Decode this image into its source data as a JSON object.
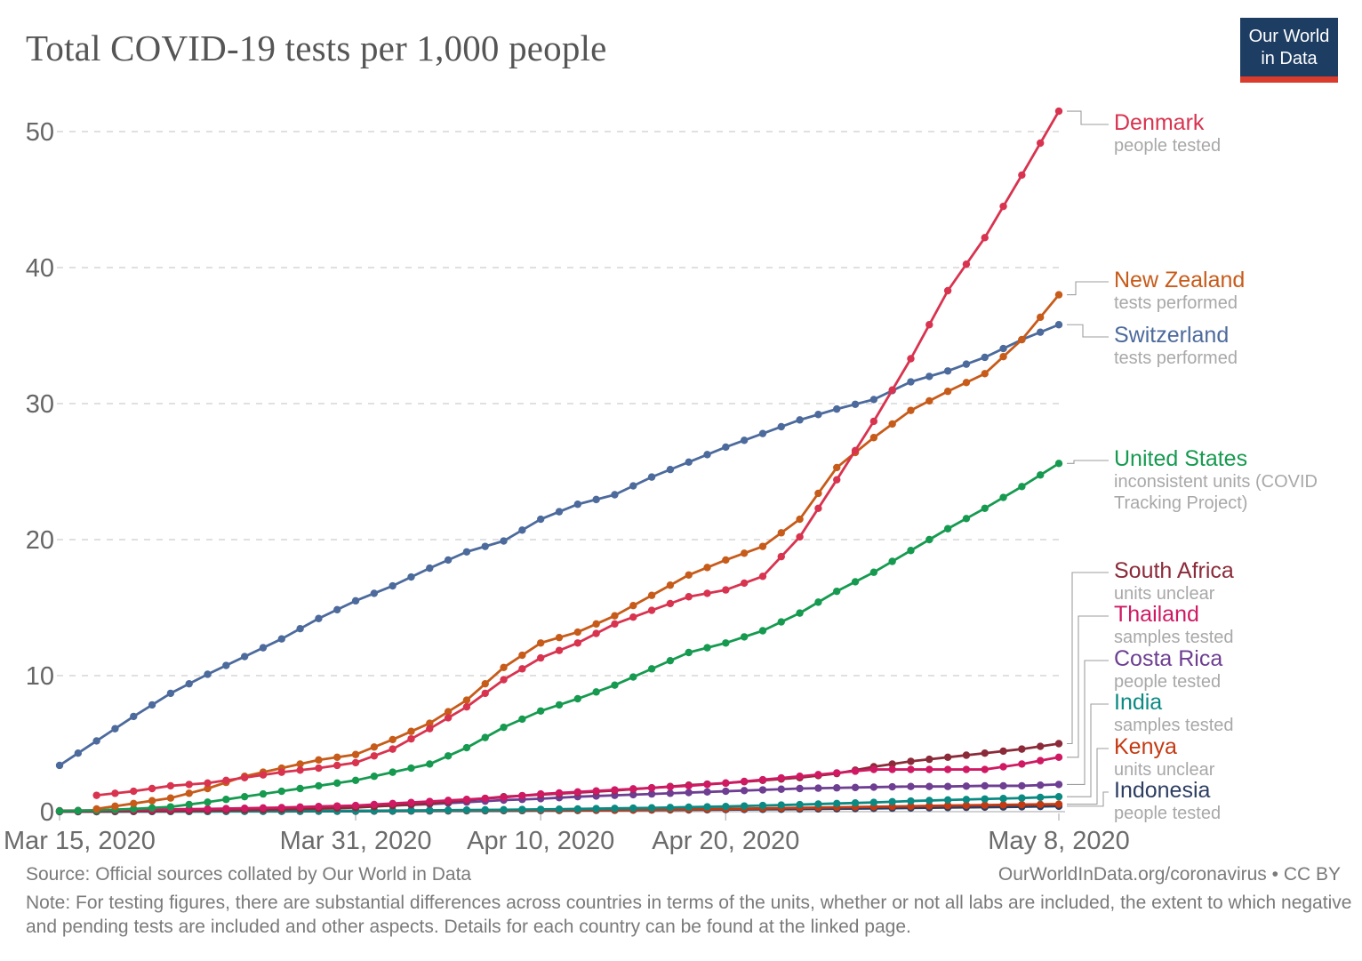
{
  "title": "Total COVID-19 tests per 1,000 people",
  "logo": {
    "line1": "Our World",
    "line2": "in Data"
  },
  "footer": {
    "source": "Source: Official sources collated by Our World in Data",
    "credit": "OurWorldInData.org/coronavirus • CC BY",
    "note": "Note: For testing figures, there are substantial differences across countries in terms of the units, whether or not all labs are included, the extent to which negative and pending tests are included and other aspects. Details for each country can be found at the linked page."
  },
  "chart_data": {
    "type": "line",
    "title": "Total COVID-19 tests per 1,000 people",
    "xlabel": "",
    "ylabel": "",
    "ylim": [
      0,
      52
    ],
    "grid": "horizontal-dashed",
    "legend_position": "right",
    "y_ticks": [
      0,
      10,
      20,
      30,
      40,
      50
    ],
    "x_ticks": [
      {
        "label": "Mar 15, 2020",
        "day": 0
      },
      {
        "label": "Mar 31, 2020",
        "day": 16
      },
      {
        "label": "Apr 10, 2020",
        "day": 26
      },
      {
        "label": "Apr 20, 2020",
        "day": 36
      },
      {
        "label": "May 8, 2020",
        "day": 54
      }
    ],
    "days_since_mar15": [
      0,
      2,
      4,
      6,
      8,
      10,
      12,
      14,
      16,
      18,
      20,
      22,
      24,
      26,
      28,
      30,
      32,
      34,
      36,
      38,
      40,
      42,
      44,
      46,
      48,
      50,
      52,
      54
    ],
    "dates": [
      "Mar 15",
      "Mar 17",
      "Mar 19",
      "Mar 21",
      "Mar 23",
      "Mar 25",
      "Mar 27",
      "Mar 29",
      "Mar 31",
      "Apr 2",
      "Apr 4",
      "Apr 6",
      "Apr 8",
      "Apr 10",
      "Apr 12",
      "Apr 14",
      "Apr 16",
      "Apr 18",
      "Apr 20",
      "Apr 22",
      "Apr 24",
      "Apr 26",
      "Apr 28",
      "Apr 30",
      "May 2",
      "May 4",
      "May 6",
      "May 8"
    ],
    "series": [
      {
        "name": "Denmark",
        "unit_note": "people tested",
        "color": "#D8334F",
        "values": [
          null,
          1.2,
          1.5,
          1.9,
          2.1,
          2.5,
          2.9,
          3.2,
          3.6,
          4.6,
          6.1,
          7.7,
          9.7,
          11.3,
          12.4,
          13.8,
          14.8,
          15.8,
          16.3,
          17.3,
          20.2,
          24.4,
          28.7,
          33.3,
          38.3,
          42.2,
          46.8,
          51.5
        ]
      },
      {
        "name": "New Zealand",
        "unit_note": "tests performed",
        "color": "#C75B1A",
        "values": [
          null,
          0.2,
          0.6,
          1.0,
          1.7,
          2.6,
          3.2,
          3.8,
          4.2,
          5.3,
          6.5,
          8.2,
          10.6,
          12.4,
          13.2,
          14.4,
          15.9,
          17.4,
          18.5,
          19.5,
          21.5,
          25.3,
          27.5,
          29.5,
          30.9,
          32.2,
          34.7,
          38.0
        ]
      },
      {
        "name": "Switzerland",
        "unit_note": "tests performed",
        "color": "#4C6A9C",
        "values": [
          3.4,
          5.2,
          7.0,
          8.7,
          10.1,
          11.4,
          12.7,
          14.2,
          15.5,
          16.6,
          17.9,
          19.1,
          19.9,
          21.5,
          22.6,
          23.3,
          24.6,
          25.7,
          26.8,
          27.8,
          28.8,
          29.6,
          30.3,
          31.6,
          32.4,
          33.4,
          34.7,
          35.8
        ]
      },
      {
        "name": "United States",
        "unit_note": "inconsistent units (COVID Tracking Project)",
        "color": "#169A50",
        "values": [
          0.05,
          0.1,
          0.2,
          0.35,
          0.7,
          1.1,
          1.5,
          1.9,
          2.3,
          2.9,
          3.5,
          4.7,
          6.2,
          7.4,
          8.3,
          9.3,
          10.5,
          11.7,
          12.4,
          13.3,
          14.6,
          16.2,
          17.6,
          19.2,
          20.8,
          22.3,
          23.9,
          25.6
        ]
      },
      {
        "name": "South Africa",
        "unit_note": "units unclear",
        "color": "#8B2B39",
        "values": [
          0.02,
          0.03,
          0.04,
          0.05,
          0.08,
          0.12,
          0.16,
          0.22,
          0.3,
          0.45,
          0.6,
          0.85,
          1.1,
          1.25,
          1.4,
          1.55,
          1.75,
          1.95,
          2.1,
          2.3,
          2.5,
          2.8,
          3.3,
          3.7,
          4.0,
          4.3,
          4.6,
          5.0
        ]
      },
      {
        "name": "Thailand",
        "unit_note": "samples tested",
        "color": "#CF1A63",
        "values": [
          0.07,
          0.1,
          0.13,
          0.17,
          0.2,
          0.25,
          0.3,
          0.38,
          0.45,
          0.6,
          0.75,
          0.9,
          1.05,
          1.3,
          1.45,
          1.6,
          1.75,
          1.9,
          2.1,
          2.35,
          2.6,
          2.85,
          3.1,
          3.1,
          3.1,
          3.1,
          3.5,
          4.0
        ]
      },
      {
        "name": "Costa Rica",
        "unit_note": "people tested",
        "color": "#6D3E91",
        "values": [
          0.03,
          0.05,
          0.08,
          0.1,
          0.15,
          0.2,
          0.25,
          0.3,
          0.35,
          0.45,
          0.55,
          0.7,
          0.85,
          0.95,
          1.1,
          1.2,
          1.3,
          1.4,
          1.5,
          1.6,
          1.7,
          1.75,
          1.8,
          1.85,
          1.85,
          1.9,
          1.9,
          2.0
        ]
      },
      {
        "name": "India",
        "unit_note": "samples tested",
        "color": "#0B8A83",
        "values": [
          0.01,
          0.01,
          0.02,
          0.02,
          0.03,
          0.03,
          0.04,
          0.05,
          0.06,
          0.08,
          0.1,
          0.12,
          0.14,
          0.17,
          0.2,
          0.24,
          0.28,
          0.33,
          0.38,
          0.45,
          0.52,
          0.6,
          0.68,
          0.78,
          0.86,
          0.93,
          1.0,
          1.1
        ]
      },
      {
        "name": "Kenya",
        "unit_note": "units unclear",
        "color": "#C43A12",
        "values": [
          0.02,
          0.02,
          0.03,
          0.03,
          0.04,
          0.04,
          0.05,
          0.05,
          0.06,
          0.07,
          0.08,
          0.09,
          0.1,
          0.11,
          0.12,
          0.13,
          0.15,
          0.17,
          0.2,
          0.24,
          0.28,
          0.32,
          0.36,
          0.4,
          0.45,
          0.48,
          0.52,
          0.55
        ]
      },
      {
        "name": "Indonesia",
        "unit_note": "people tested",
        "color": "#2D3E63",
        "values": [
          0.0,
          0.0,
          0.01,
          0.01,
          0.01,
          0.02,
          0.02,
          0.03,
          0.03,
          0.04,
          0.05,
          0.06,
          0.07,
          0.08,
          0.09,
          0.1,
          0.12,
          0.13,
          0.15,
          0.17,
          0.19,
          0.21,
          0.24,
          0.27,
          0.3,
          0.33,
          0.36,
          0.4
        ]
      }
    ]
  }
}
